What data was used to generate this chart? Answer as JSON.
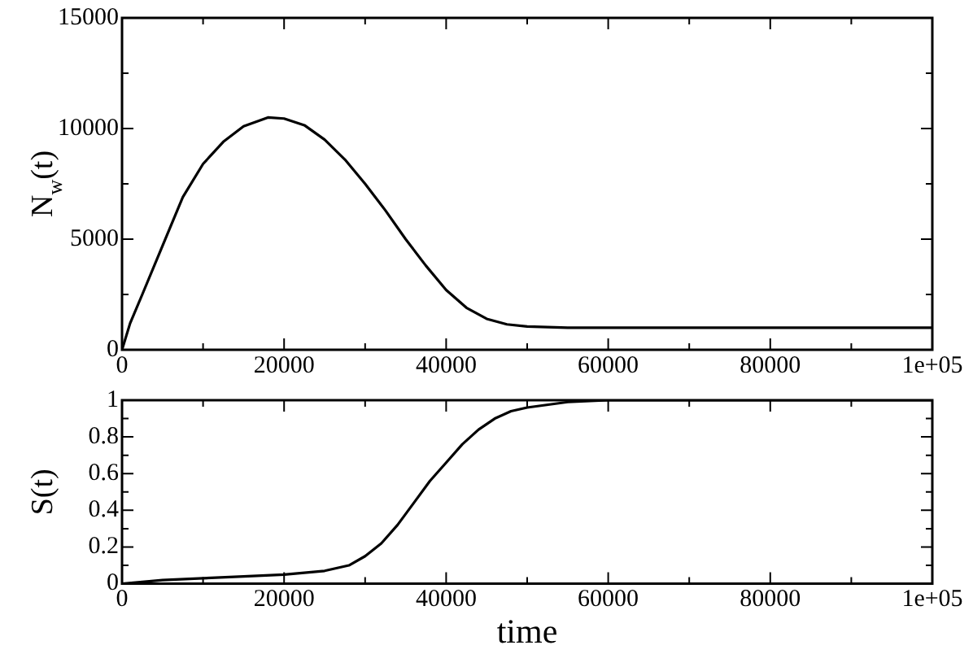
{
  "chart_data": [
    {
      "type": "line",
      "ylabel": "N$_{w}$(t)",
      "x": [
        0,
        1000,
        2500,
        5000,
        7500,
        10000,
        12500,
        15000,
        18000,
        20000,
        22500,
        25000,
        27500,
        30000,
        32500,
        35000,
        37500,
        40000,
        42500,
        45000,
        47500,
        50000,
        55000,
        60000,
        100000
      ],
      "series": [
        {
          "color": "#000000",
          "values": [
            0,
            1200,
            2500,
            4700,
            6900,
            8400,
            9400,
            10100,
            10500,
            10450,
            10150,
            9500,
            8600,
            7500,
            6300,
            5000,
            3800,
            2700,
            1900,
            1400,
            1150,
            1050,
            1000,
            1000,
            1000
          ]
        }
      ],
      "xlim": [
        0,
        100000
      ],
      "xticks": [
        0,
        {
          "value": 10000,
          "label": null
        },
        20000,
        {
          "value": 30000,
          "label": null
        },
        40000,
        {
          "value": 50000,
          "label": null
        },
        60000,
        {
          "value": 70000,
          "label": null
        },
        80000,
        {
          "value": 90000,
          "label": null
        },
        {
          "value": 100000,
          "label": "1e+05"
        }
      ],
      "ylim": [
        0,
        15000
      ],
      "yticks": [
        0,
        {
          "value": 2500,
          "label": null
        },
        5000,
        {
          "value": 7500,
          "label": null
        },
        10000,
        {
          "value": 12500,
          "label": null
        },
        15000
      ],
      "grid": false,
      "legend": false,
      "marker": "none",
      "line_style": "solid"
    },
    {
      "type": "line",
      "xlabel": "time",
      "ylabel": "S(t)",
      "x": [
        0,
        5000,
        10000,
        15000,
        20000,
        25000,
        28000,
        30000,
        32000,
        34000,
        36000,
        38000,
        40000,
        42000,
        44000,
        46000,
        48000,
        50000,
        55000,
        60000,
        100000
      ],
      "series": [
        {
          "color": "#000000",
          "values": [
            0,
            0.02,
            0.03,
            0.04,
            0.05,
            0.07,
            0.1,
            0.15,
            0.22,
            0.32,
            0.44,
            0.56,
            0.66,
            0.76,
            0.84,
            0.9,
            0.94,
            0.96,
            0.99,
            1,
            1
          ]
        }
      ],
      "xlim": [
        0,
        100000
      ],
      "xticks": [
        0,
        {
          "value": 10000,
          "label": null
        },
        20000,
        {
          "value": 30000,
          "label": null
        },
        40000,
        {
          "value": 50000,
          "label": null
        },
        60000,
        {
          "value": 70000,
          "label": null
        },
        80000,
        {
          "value": 90000,
          "label": null
        },
        {
          "value": 100000,
          "label": "1e+05"
        }
      ],
      "ylim": [
        0,
        1
      ],
      "yticks": [
        0,
        {
          "value": 0.1,
          "label": null
        },
        0.2,
        {
          "value": 0.3,
          "label": null
        },
        0.4,
        {
          "value": 0.5,
          "label": null
        },
        0.6,
        {
          "value": 0.7,
          "label": null
        },
        0.8,
        {
          "value": 0.9,
          "label": null
        },
        1
      ],
      "grid": false,
      "legend": false,
      "marker": "none",
      "line_style": "solid"
    }
  ]
}
